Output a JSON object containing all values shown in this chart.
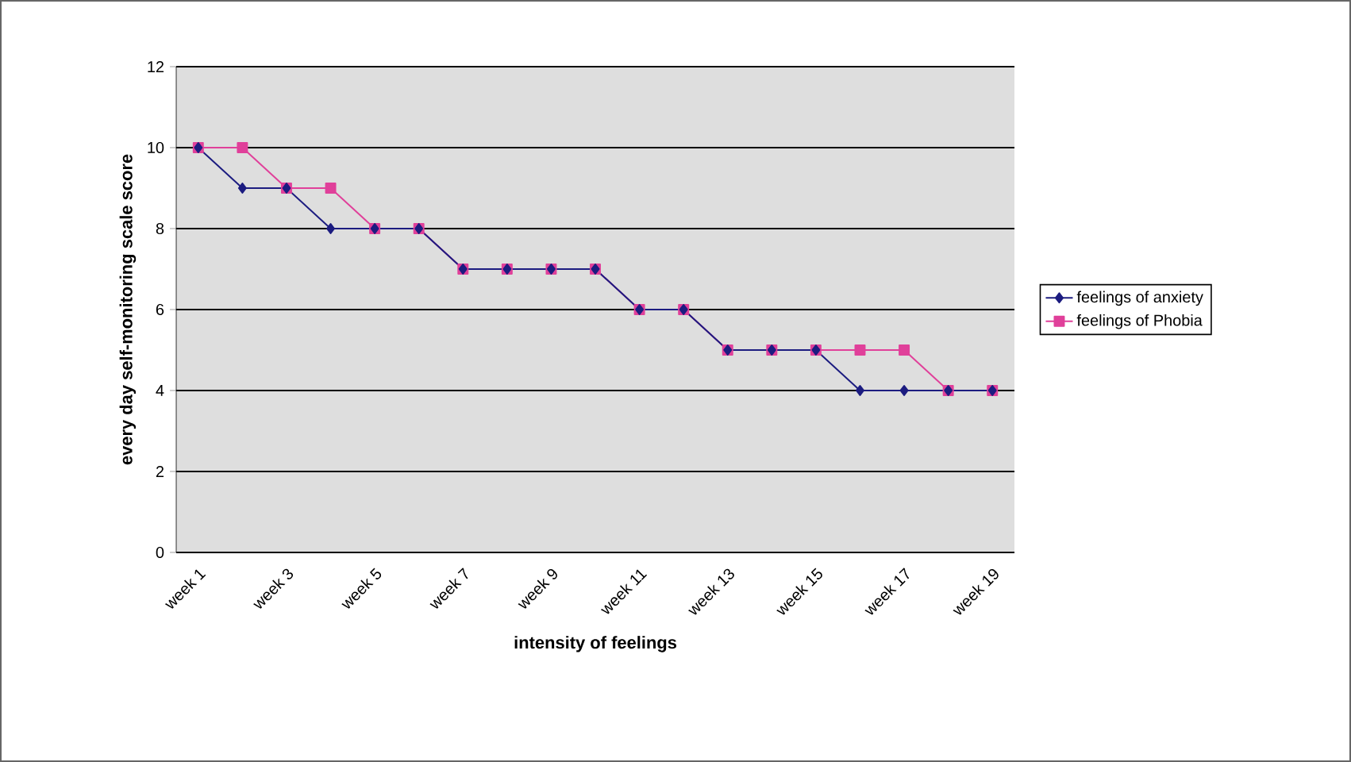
{
  "chart_data": {
    "type": "line",
    "xlabel": "intensity of feelings",
    "ylabel": "every day self-monitoring scale score",
    "categories": [
      "week 1",
      null,
      "week 3",
      null,
      "week 5",
      null,
      "week 7",
      null,
      "week 9",
      null,
      "week 11",
      null,
      "week 13",
      null,
      "week 15",
      null,
      "week 17",
      null,
      "week 19"
    ],
    "series": [
      {
        "name": "feelings of anxiety",
        "color": "#1c1c80",
        "marker": "diamond",
        "values": [
          10,
          9,
          9,
          8,
          8,
          8,
          7,
          7,
          7,
          7,
          6,
          6,
          5,
          5,
          5,
          4,
          4,
          4,
          4
        ]
      },
      {
        "name": "feelings of Phobia",
        "color": "#e0409a",
        "marker": "square",
        "values": [
          10,
          10,
          9,
          9,
          8,
          8,
          7,
          7,
          7,
          7,
          6,
          6,
          5,
          5,
          5,
          5,
          5,
          4,
          4
        ]
      }
    ],
    "ylim": [
      0,
      12
    ],
    "yticks": [
      0,
      2,
      4,
      6,
      8,
      10,
      12
    ],
    "grid": "y",
    "legend": "right",
    "line_style": "solid"
  }
}
